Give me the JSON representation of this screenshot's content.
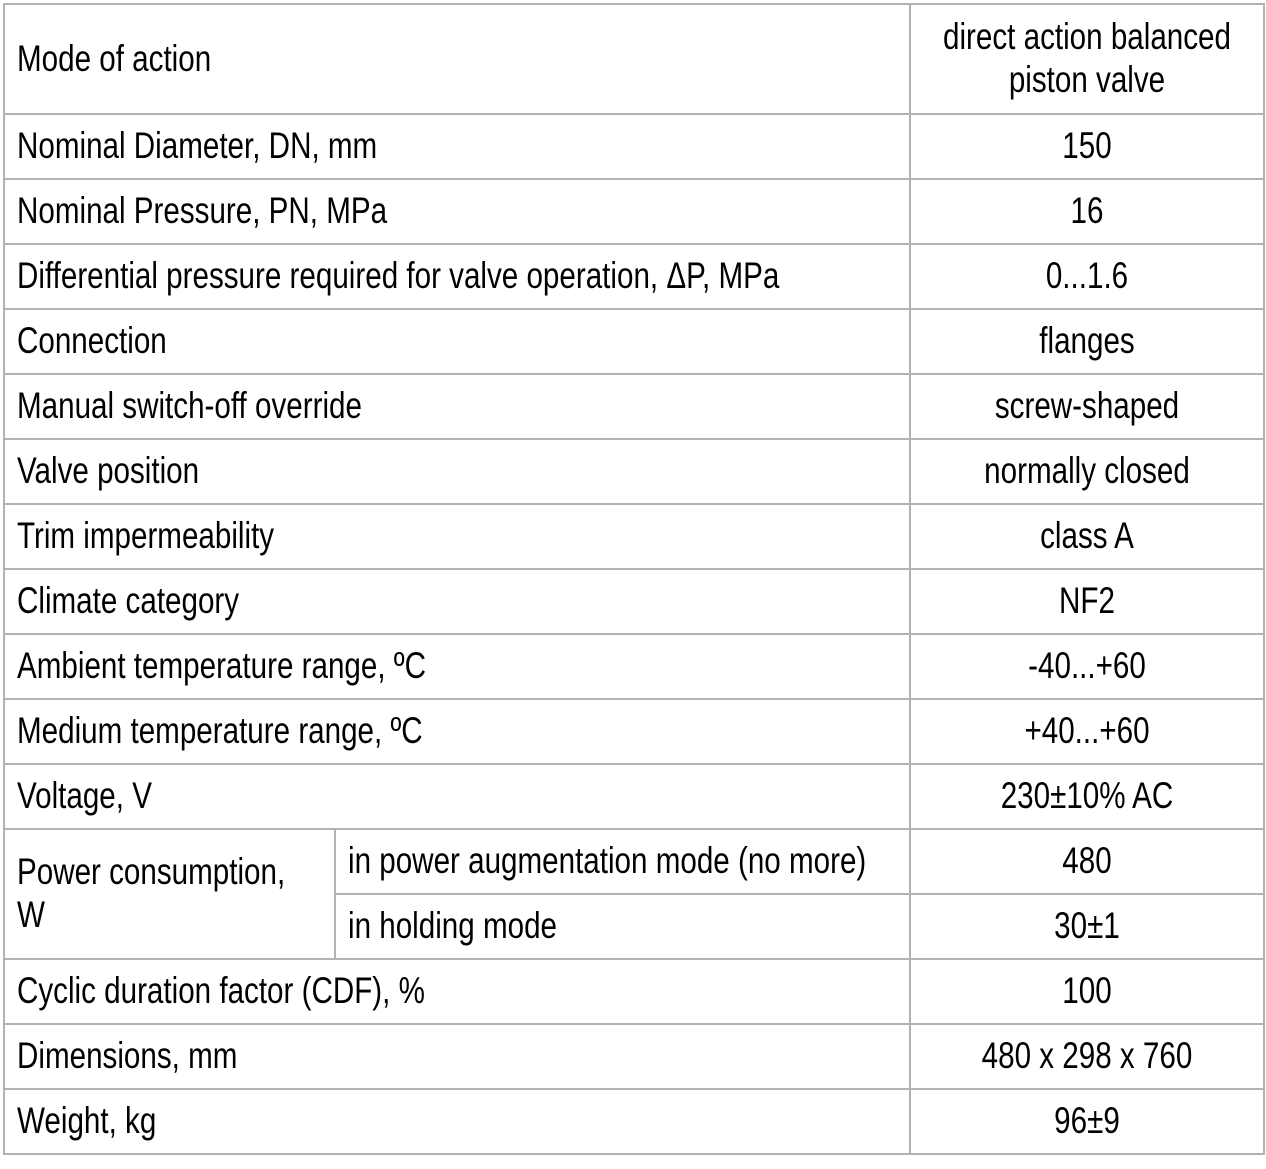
{
  "colors": {
    "background": "#ffffff",
    "border": "#b2b2b2",
    "text": "#000000"
  },
  "table": {
    "rows": [
      {
        "label": "Mode of action",
        "value": "direct action balanced piston valve"
      },
      {
        "label": "Nominal Diameter, DN, mm",
        "value": "150"
      },
      {
        "label": "Nominal Pressure, PN, MPa",
        "value": "16"
      },
      {
        "label": "Differential pressure required for valve operation, ΔP, MPa",
        "value": "0...1.6"
      },
      {
        "label": "Connection",
        "value": "flanges"
      },
      {
        "label": "Manual switch-off override",
        "value": "screw-shaped"
      },
      {
        "label": "Valve position",
        "value": "normally closed"
      },
      {
        "label": "Trim impermeability",
        "value": "class A"
      },
      {
        "label": "Climate category",
        "value": "NF2"
      },
      {
        "label": "Ambient temperature range, ºC",
        "value": "-40...+60"
      },
      {
        "label": "Medium temperature range, ºC",
        "value": "+40...+60"
      },
      {
        "label": "Voltage, V",
        "value": "230±10% AC"
      }
    ],
    "power_group": {
      "label": "Power consumption, W",
      "sub_rows": [
        {
          "label": "in power augmentation mode (no more)",
          "value": "480"
        },
        {
          "label": "in holding mode",
          "value": "30±1"
        }
      ]
    },
    "bottom_rows": [
      {
        "label": "Cyclic duration factor (CDF), %",
        "value": "100"
      },
      {
        "label": "Dimensions, mm",
        "value": "480 x 298 x 760"
      },
      {
        "label": "Weight, kg",
        "value": "96±9"
      }
    ]
  }
}
